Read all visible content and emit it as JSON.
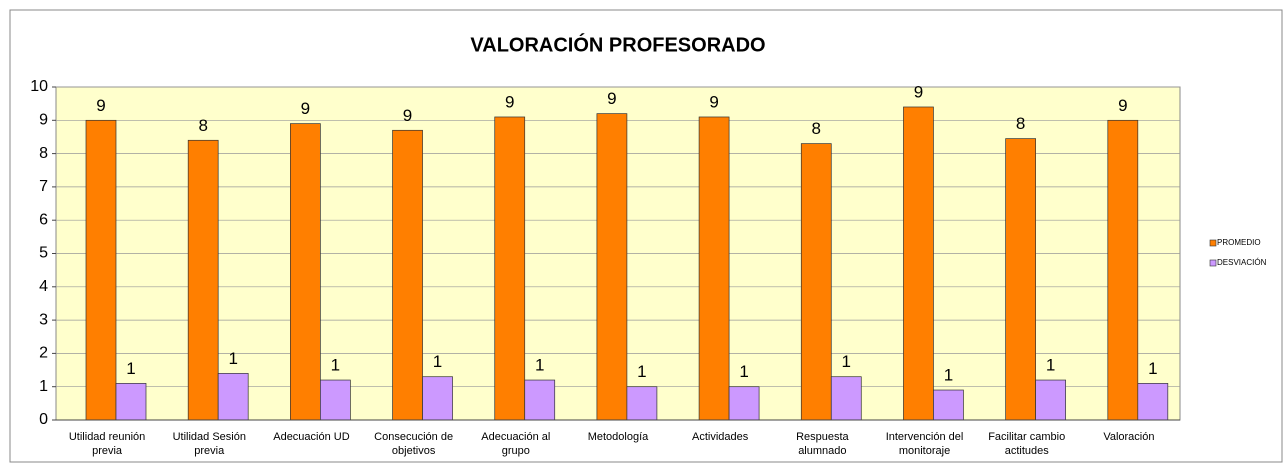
{
  "chart_data": {
    "type": "bar",
    "title": "VALORACIÓN PROFESORADO",
    "categories": [
      "Utilidad reunión previa",
      "Utilidad Sesión previa",
      "Adecuación UD",
      "Consecución de objetivos",
      "Adecuación al grupo",
      "Metodología",
      "Actividades",
      "Respuesta alumnado",
      "Intervención del monitoraje",
      "Facilitar cambio actitudes",
      "Valoración"
    ],
    "series": [
      {
        "name": "PROMEDIO",
        "color": "#ff7f00",
        "values": [
          9.0,
          8.4,
          8.9,
          8.7,
          9.1,
          9.2,
          9.1,
          8.3,
          9.4,
          8.45,
          9.0
        ],
        "value_labels": [
          "9",
          "8",
          "9",
          "9",
          "9",
          "9",
          "9",
          "8",
          "9",
          "8",
          "9"
        ]
      },
      {
        "name": "DESVIACIÓN",
        "color": "#cc99ff",
        "values": [
          1.1,
          1.4,
          1.2,
          1.3,
          1.2,
          1.0,
          1.0,
          1.3,
          0.9,
          1.2,
          1.1
        ],
        "value_labels": [
          "1",
          "1",
          "1",
          "1",
          "1",
          "1",
          "1",
          "1",
          "1",
          "1",
          "1"
        ]
      }
    ],
    "ylim": [
      0,
      10
    ],
    "yticks": [
      0,
      1,
      2,
      3,
      4,
      5,
      6,
      7,
      8,
      9,
      10
    ],
    "grid": true,
    "legend": "right"
  }
}
